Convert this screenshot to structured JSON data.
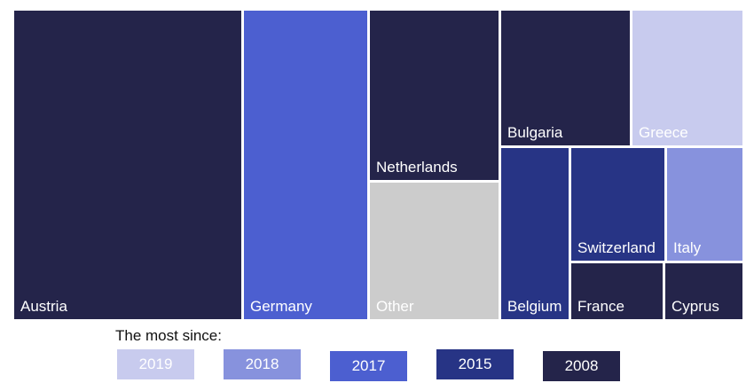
{
  "chart_data": {
    "type": "treemap",
    "items": [
      {
        "name": "Austria",
        "group": "2008"
      },
      {
        "name": "Germany",
        "group": "2017"
      },
      {
        "name": "Netherlands",
        "group": "2008"
      },
      {
        "name": "Other",
        "group": ""
      },
      {
        "name": "Bulgaria",
        "group": "2008"
      },
      {
        "name": "Greece",
        "group": "2019"
      },
      {
        "name": "Belgium",
        "group": "2015"
      },
      {
        "name": "Switzerland",
        "group": "2015"
      },
      {
        "name": "Italy",
        "group": "2018"
      },
      {
        "name": "France",
        "group": "2008"
      },
      {
        "name": "Cyprus",
        "group": "2008"
      }
    ],
    "legend_title": "The most since:",
    "legend": [
      {
        "label": "2019",
        "color": "#c8cbee"
      },
      {
        "label": "2018",
        "color": "#8792dd"
      },
      {
        "label": "2017",
        "color": "#4c5fd0"
      },
      {
        "label": "2015",
        "color": "#273485"
      },
      {
        "label": "2008",
        "color": "#24244a"
      }
    ],
    "other_color": "#cccccc"
  }
}
